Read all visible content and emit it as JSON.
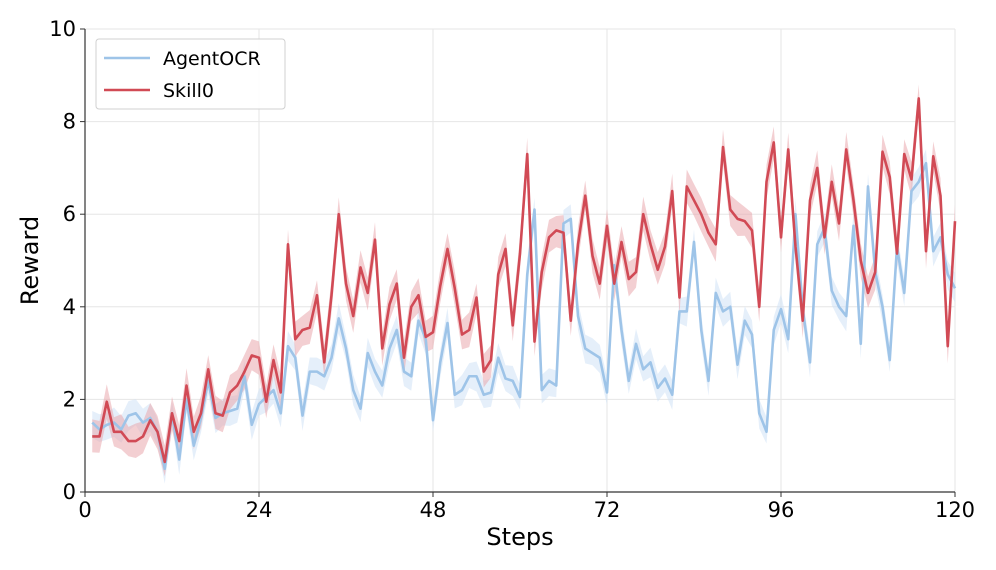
{
  "chart_data": {
    "type": "line",
    "xlabel": "Steps",
    "ylabel": "Reward",
    "xlim": [
      0,
      120
    ],
    "ylim": [
      0,
      10
    ],
    "xticks": [
      0,
      24,
      48,
      72,
      96,
      120
    ],
    "yticks": [
      0,
      2,
      4,
      6,
      8,
      10
    ],
    "grid": true,
    "legend_position": "top-left",
    "x": [
      1,
      2,
      3,
      4,
      5,
      6,
      7,
      8,
      9,
      10,
      11,
      12,
      13,
      14,
      15,
      16,
      17,
      18,
      19,
      20,
      21,
      22,
      23,
      24,
      25,
      26,
      27,
      28,
      29,
      30,
      31,
      32,
      33,
      34,
      35,
      36,
      37,
      38,
      39,
      40,
      41,
      42,
      43,
      44,
      45,
      46,
      47,
      48,
      49,
      50,
      51,
      52,
      53,
      54,
      55,
      56,
      57,
      58,
      59,
      60,
      61,
      62,
      63,
      64,
      65,
      66,
      67,
      68,
      69,
      70,
      71,
      72,
      73,
      74,
      75,
      76,
      77,
      78,
      79,
      80,
      81,
      82,
      83,
      84,
      85,
      86,
      87,
      88,
      89,
      90,
      91,
      92,
      93,
      94,
      95,
      96,
      97,
      98,
      99,
      100,
      101,
      102,
      103,
      104,
      105,
      106,
      107,
      108,
      109,
      110,
      111,
      112,
      113,
      114,
      115,
      116,
      117,
      118,
      119,
      120
    ],
    "series": [
      {
        "name": "AgentOCR",
        "color": "#9ec4e8",
        "band_color": "#cfe2f5",
        "values": [
          1.5,
          1.35,
          1.45,
          1.5,
          1.35,
          1.65,
          1.7,
          1.5,
          1.6,
          1.3,
          0.5,
          1.7,
          0.7,
          2.0,
          1.0,
          1.6,
          2.4,
          1.6,
          1.7,
          1.75,
          1.8,
          2.5,
          1.45,
          1.9,
          2.05,
          2.2,
          1.7,
          3.15,
          2.9,
          1.65,
          2.6,
          2.6,
          2.5,
          2.9,
          3.75,
          3.1,
          2.2,
          1.8,
          3.0,
          2.6,
          2.3,
          3.1,
          3.5,
          2.6,
          2.5,
          3.7,
          3.3,
          1.55,
          2.8,
          3.65,
          2.1,
          2.2,
          2.5,
          2.5,
          2.1,
          2.15,
          2.9,
          2.45,
          2.4,
          2.05,
          4.7,
          6.1,
          2.2,
          2.4,
          2.3,
          5.8,
          5.9,
          3.8,
          3.1,
          3.0,
          2.9,
          2.15,
          4.9,
          3.5,
          2.4,
          3.2,
          2.65,
          2.8,
          2.25,
          2.45,
          2.1,
          3.9,
          3.9,
          5.4,
          3.5,
          2.4,
          4.3,
          3.9,
          4.0,
          2.75,
          3.7,
          3.4,
          1.7,
          1.3,
          3.5,
          3.95,
          3.3,
          6.0,
          3.95,
          2.8,
          5.35,
          5.7,
          4.35,
          4.0,
          3.8,
          5.75,
          3.2,
          6.6,
          4.75,
          4.0,
          2.85,
          5.3,
          4.3,
          6.5,
          6.7,
          7.1,
          5.2,
          5.5,
          4.7,
          4.4
        ]
      },
      {
        "name": "Skill0",
        "color": "#d14a55",
        "band_color": "#eaa8ad",
        "values": [
          1.2,
          1.2,
          1.95,
          1.3,
          1.3,
          1.1,
          1.1,
          1.2,
          1.55,
          1.3,
          0.65,
          1.7,
          1.1,
          2.3,
          1.3,
          1.7,
          2.65,
          1.7,
          1.65,
          2.15,
          2.3,
          2.6,
          2.95,
          2.9,
          1.95,
          2.85,
          2.15,
          5.35,
          3.3,
          3.5,
          3.55,
          4.25,
          2.8,
          4.25,
          6.0,
          4.5,
          3.8,
          4.85,
          4.3,
          5.45,
          3.1,
          4.05,
          4.5,
          2.9,
          4.0,
          4.25,
          3.35,
          3.45,
          4.45,
          5.25,
          4.4,
          3.4,
          3.5,
          4.2,
          2.6,
          2.85,
          4.7,
          5.25,
          3.6,
          5.15,
          7.3,
          3.25,
          4.75,
          5.5,
          5.65,
          5.6,
          3.7,
          5.35,
          6.4,
          5.1,
          4.5,
          5.75,
          4.5,
          5.4,
          4.6,
          4.75,
          6.0,
          5.35,
          4.8,
          5.3,
          6.5,
          4.2,
          6.6,
          6.3,
          6.0,
          5.6,
          5.35,
          7.45,
          6.1,
          5.9,
          5.85,
          5.65,
          4.0,
          6.7,
          7.55,
          5.5,
          7.4,
          5.3,
          3.7,
          6.3,
          7.0,
          5.5,
          6.7,
          5.8,
          7.4,
          6.3,
          5.0,
          4.3,
          4.75,
          7.35,
          6.8,
          5.15,
          7.3,
          6.75,
          8.5,
          5.2,
          7.25,
          6.4,
          3.15,
          5.85
        ]
      }
    ]
  }
}
